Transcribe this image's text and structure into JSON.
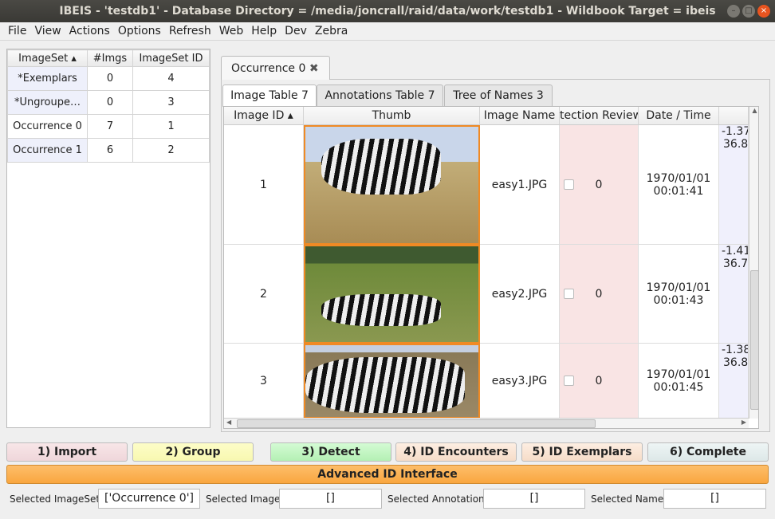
{
  "window": {
    "title": "IBEIS - 'testdb1' - Database Directory = /media/joncrall/raid/data/work/testdb1 - Wildbook Target = ibeis"
  },
  "menu": [
    "File",
    "View",
    "Actions",
    "Options",
    "Refresh",
    "Web",
    "Help",
    "Dev",
    "Zebra"
  ],
  "imagesets": {
    "headers": [
      "ImageSet",
      "#Imgs",
      "ImageSet ID"
    ],
    "rows": [
      [
        "*Exemplars",
        "0",
        "4"
      ],
      [
        "*Ungroupe…",
        "0",
        "3"
      ],
      [
        "Occurrence 0",
        "7",
        "1"
      ],
      [
        "Occurrence 1",
        "6",
        "2"
      ]
    ]
  },
  "occurrence_tab": "Occurrence 0",
  "subtabs": [
    "Image Table 7",
    "Annotations Table 7",
    "Tree of Names 3"
  ],
  "image_table": {
    "headers": [
      "Image ID",
      "Thumb",
      "Image Name",
      "tection Review",
      "Date / Time",
      ""
    ],
    "rows": [
      {
        "id": "1",
        "name": "easy1.JPG",
        "review": "0",
        "date": "1970/01/01",
        "time": "00:01:41",
        "lat": "-1.37",
        "lon": "36.8"
      },
      {
        "id": "2",
        "name": "easy2.JPG",
        "review": "0",
        "date": "1970/01/01",
        "time": "00:01:43",
        "lat": "-1.41",
        "lon": "36.7"
      },
      {
        "id": "3",
        "name": "easy3.JPG",
        "review": "0",
        "date": "1970/01/01",
        "time": "00:01:45",
        "lat": "-1.38",
        "lon": "36.8"
      }
    ]
  },
  "workflow": [
    "1) Import",
    "2) Group",
    "3) Detect",
    "4) ID Encounters",
    "5) ID Exemplars",
    "6) Complete"
  ],
  "advanced": "Advanced ID Interface",
  "status": {
    "imageset_label": "Selected ImageSet:",
    "imageset": "['Occurrence 0']",
    "image_label": "Selected Image:",
    "image": "[]",
    "annot_label": "Selected Annotation:",
    "annot": "[]",
    "name_label": "Selected Name:",
    "name": "[]"
  },
  "colors": {
    "accent": "#f9a63f",
    "selected_border": "#f08a24"
  }
}
